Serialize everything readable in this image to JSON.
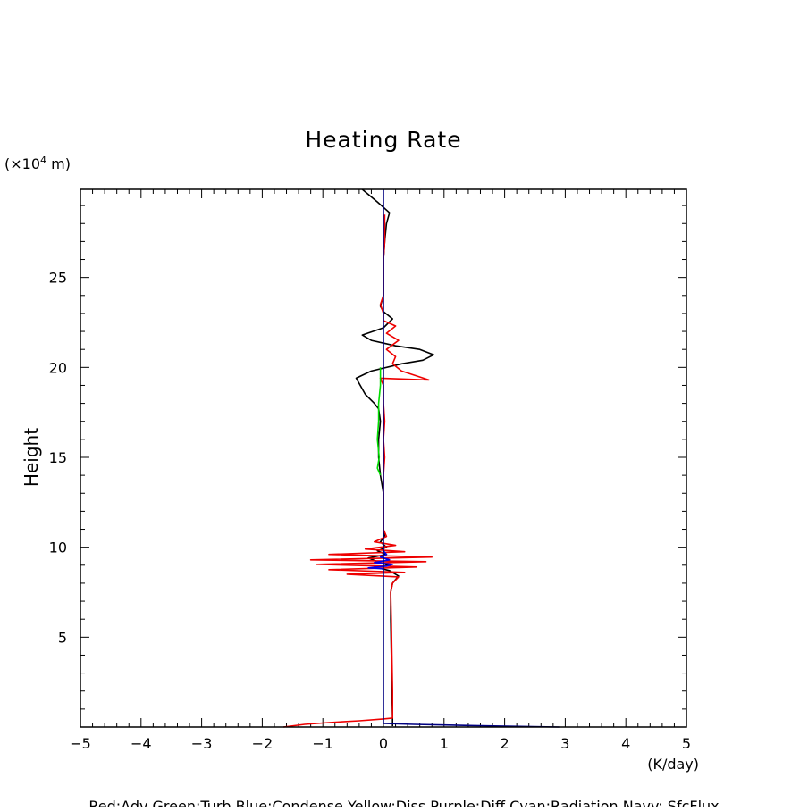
{
  "chart_data": {
    "type": "line",
    "title": "Heating Rate",
    "xlabel": "(K/day)",
    "ylabel": "Height",
    "y_unit_prefix": "(×10",
    "y_unit_exp": "4",
    "y_unit_suffix": " m)",
    "xlim": [
      -5,
      5
    ],
    "ylim": [
      0,
      29.9
    ],
    "x_ticks": [
      -5,
      -4,
      -3,
      -2,
      -1,
      0,
      1,
      2,
      3,
      4,
      5
    ],
    "x_tick_labels": [
      "−5",
      "−4",
      "−3",
      "−2",
      "−1",
      "0",
      "1",
      "2",
      "3",
      "4",
      "5"
    ],
    "y_ticks": [
      5,
      10,
      15,
      20,
      25
    ],
    "y_tick_labels": [
      "5",
      "10",
      "15",
      "20",
      "25"
    ],
    "grid": false,
    "legend_text": "Red:Adv  Green:Turb  Blue:Condense  Yellow:Diss  Purple:Diff  Cyan:Radiation  Navy: SfcFlux",
    "series": [
      {
        "name": "Total",
        "color": "#000000",
        "points": [
          [
            0.15,
            0.05
          ],
          [
            0.15,
            0.5
          ],
          [
            0.14,
            2
          ],
          [
            0.13,
            4
          ],
          [
            0.12,
            6
          ],
          [
            0.12,
            7.5
          ],
          [
            0.15,
            8.0
          ],
          [
            0.25,
            8.4
          ],
          [
            0.1,
            8.7
          ],
          [
            -0.15,
            8.9
          ],
          [
            0.1,
            9.0
          ],
          [
            -0.1,
            9.2
          ],
          [
            -0.25,
            9.4
          ],
          [
            0.05,
            9.6
          ],
          [
            -0.1,
            9.8
          ],
          [
            0.05,
            10.0
          ],
          [
            -0.05,
            10.3
          ],
          [
            0.02,
            10.6
          ],
          [
            0.0,
            11.0
          ],
          [
            0.0,
            12.0
          ],
          [
            0.0,
            13.0
          ],
          [
            -0.05,
            14.0
          ],
          [
            -0.08,
            15.0
          ],
          [
            -0.08,
            16.0
          ],
          [
            -0.05,
            17.0
          ],
          [
            -0.08,
            17.7
          ],
          [
            -0.15,
            18.0
          ],
          [
            -0.3,
            18.5
          ],
          [
            -0.45,
            19.4
          ],
          [
            -0.2,
            19.8
          ],
          [
            0.3,
            20.2
          ],
          [
            0.65,
            20.4
          ],
          [
            0.83,
            20.7
          ],
          [
            0.6,
            21.0
          ],
          [
            0.2,
            21.2
          ],
          [
            -0.2,
            21.5
          ],
          [
            -0.35,
            21.8
          ],
          [
            0.0,
            22.2
          ],
          [
            0.15,
            22.7
          ],
          [
            0.0,
            23.1
          ],
          [
            -0.05,
            23.4
          ],
          [
            0.0,
            24.0
          ],
          [
            0.0,
            25.0
          ],
          [
            0.0,
            26.0
          ],
          [
            0.02,
            27.0
          ],
          [
            0.05,
            28.0
          ],
          [
            0.1,
            28.6
          ],
          [
            -0.1,
            29.2
          ],
          [
            -0.35,
            29.9
          ]
        ]
      },
      {
        "name": "Adv",
        "color": "#ee0000",
        "points": [
          [
            -1.65,
            0.0
          ],
          [
            -1.3,
            0.15
          ],
          [
            -0.9,
            0.25
          ],
          [
            -0.4,
            0.35
          ],
          [
            0.0,
            0.45
          ],
          [
            0.15,
            0.5
          ],
          [
            0.15,
            2
          ],
          [
            0.14,
            4
          ],
          [
            0.13,
            6
          ],
          [
            0.12,
            7.5
          ],
          [
            0.15,
            8.0
          ],
          [
            0.25,
            8.35
          ],
          [
            -0.6,
            8.5
          ],
          [
            0.35,
            8.6
          ],
          [
            -0.9,
            8.75
          ],
          [
            0.55,
            8.9
          ],
          [
            -1.1,
            9.05
          ],
          [
            0.7,
            9.2
          ],
          [
            -1.2,
            9.3
          ],
          [
            0.8,
            9.45
          ],
          [
            -0.9,
            9.6
          ],
          [
            0.35,
            9.75
          ],
          [
            -0.3,
            9.9
          ],
          [
            0.2,
            10.1
          ],
          [
            -0.15,
            10.3
          ],
          [
            0.05,
            10.6
          ],
          [
            0.0,
            11.0
          ],
          [
            0.0,
            12.0
          ],
          [
            0.0,
            13.0
          ],
          [
            0.0,
            14.0
          ],
          [
            0.02,
            15.0
          ],
          [
            0.0,
            16.0
          ],
          [
            0.02,
            17.0
          ],
          [
            0.0,
            18.0
          ],
          [
            0.0,
            19.0
          ],
          [
            -0.05,
            19.4
          ],
          [
            0.75,
            19.3
          ],
          [
            0.3,
            19.8
          ],
          [
            0.15,
            20.2
          ],
          [
            0.2,
            20.6
          ],
          [
            0.05,
            21.0
          ],
          [
            0.25,
            21.5
          ],
          [
            0.05,
            21.9
          ],
          [
            0.2,
            22.3
          ],
          [
            0.0,
            22.6
          ],
          [
            0.0,
            23.0
          ],
          [
            -0.05,
            23.5
          ],
          [
            0.0,
            24.0
          ],
          [
            0.0,
            25.0
          ],
          [
            0.0,
            26.0
          ],
          [
            0.02,
            27.0
          ],
          [
            0.02,
            28.5
          ]
        ]
      },
      {
        "name": "Turb",
        "color": "#00dd00",
        "points": [
          [
            -0.05,
            14.0
          ],
          [
            -0.1,
            14.4
          ],
          [
            -0.07,
            15.0
          ],
          [
            -0.1,
            16.0
          ],
          [
            -0.08,
            17.0
          ],
          [
            -0.08,
            18.0
          ],
          [
            -0.05,
            19.0
          ],
          [
            -0.05,
            19.5
          ],
          [
            -0.05,
            20.0
          ]
        ]
      },
      {
        "name": "Condense",
        "color": "#0000ee",
        "points": [
          [
            0.0,
            8.8
          ],
          [
            -0.25,
            8.85
          ],
          [
            0.05,
            8.95
          ],
          [
            0.15,
            9.05
          ],
          [
            -0.15,
            9.15
          ],
          [
            0.1,
            9.3
          ],
          [
            -0.05,
            9.45
          ],
          [
            0.05,
            9.6
          ],
          [
            0.0,
            9.8
          ],
          [
            0.0,
            10.0
          ]
        ]
      },
      {
        "name": "SfcFlux",
        "color": "#000080",
        "points": [
          [
            2.9,
            0.0
          ],
          [
            1.5,
            0.08
          ],
          [
            0.5,
            0.15
          ],
          [
            0.0,
            0.2
          ],
          [
            0.0,
            29.9
          ]
        ]
      }
    ]
  }
}
